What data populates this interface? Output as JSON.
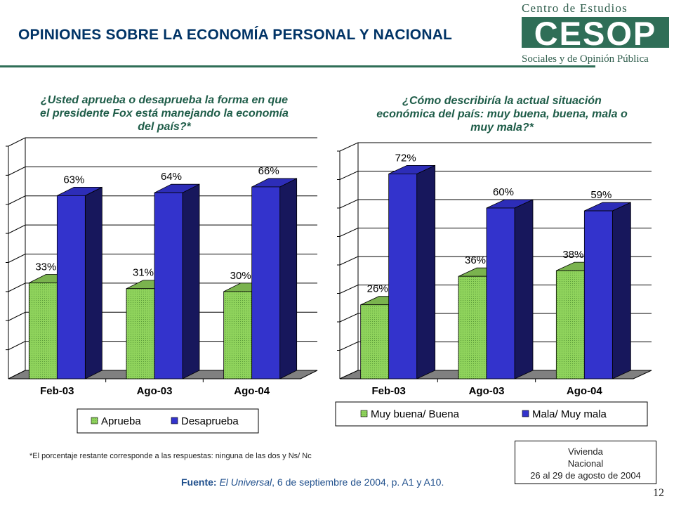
{
  "header": {
    "title": "OPINIONES SOBRE LA ECONOMÍA PERSONAL Y NACIONAL"
  },
  "logo": {
    "line1": "Centro de Estudios",
    "abbr": "CESOP",
    "line2": "Sociales y de Opinión Pública"
  },
  "questions": {
    "left": [
      "¿Usted aprueba o desaprueba la forma en que",
      "el presidente Fox está manejando la economía",
      "del país?*"
    ],
    "right": [
      "¿Cómo describiría la actual situación",
      "económica del país: muy buena, buena, mala o",
      "muy mala?*"
    ]
  },
  "chart_data": [
    {
      "type": "bar",
      "categories": [
        "Feb-03",
        "Ago-03",
        "Ago-04"
      ],
      "series": [
        {
          "name": "Aprueba",
          "values": [
            33,
            31,
            30
          ],
          "labels": [
            "33%",
            "31%",
            "30%"
          ]
        },
        {
          "name": "Desaprueba",
          "values": [
            63,
            64,
            66
          ],
          "labels": [
            "63%",
            "64%",
            "66%"
          ]
        }
      ],
      "ylim": [
        0,
        80
      ],
      "legend": "bottom",
      "grid": true,
      "colors": [
        "#8fd35c",
        "#3333cc"
      ]
    },
    {
      "type": "bar",
      "categories": [
        "Feb-03",
        "Ago-03",
        "Ago-04"
      ],
      "series": [
        {
          "name": "Muy buena/ Buena",
          "values": [
            26,
            36,
            38
          ],
          "labels": [
            "26%",
            "36%",
            "38%"
          ]
        },
        {
          "name": "Mala/ Muy mala",
          "values": [
            72,
            60,
            59
          ],
          "labels": [
            "72%",
            "60%",
            "59%"
          ]
        }
      ],
      "ylim": [
        0,
        80
      ],
      "legend": "bottom",
      "grid": true,
      "colors": [
        "#8fd35c",
        "#3333cc"
      ]
    }
  ],
  "footnote": "*El porcentaje restante corresponde a las respuestas: ninguna de las dos y Ns/ Nc",
  "source": {
    "label": "Fuente:",
    "publication": "El Universal",
    "rest": ", 6 de septiembre de 2004, p. A1 y A10."
  },
  "survey_box": [
    "Vivienda",
    "Nacional",
    "26 al 29 de agosto de 2004"
  ],
  "page_number": "12"
}
